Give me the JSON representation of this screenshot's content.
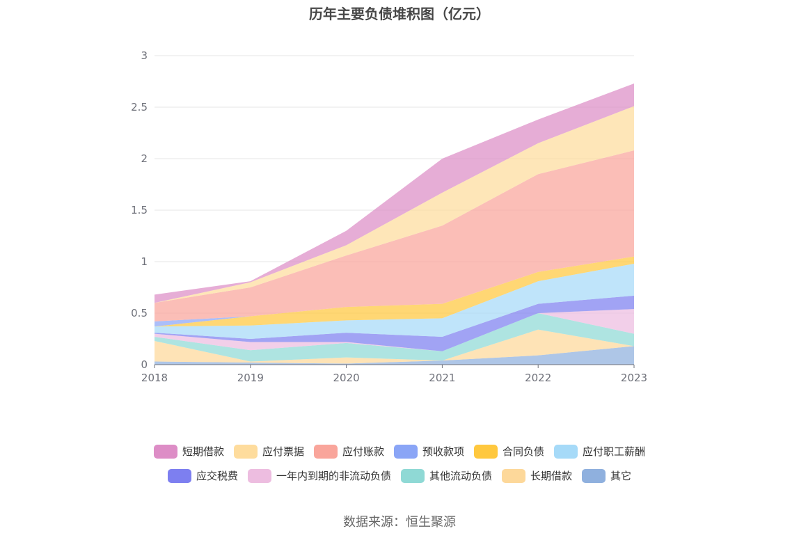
{
  "chart_data": {
    "type": "area",
    "stacked": true,
    "title": "历年主要负债堆积图（亿元）",
    "x": [
      "2018",
      "2019",
      "2020",
      "2021",
      "2022",
      "2023"
    ],
    "ylim": [
      0,
      3
    ],
    "yticks": [
      "0",
      "0.5",
      "1",
      "1.5",
      "2",
      "2.5",
      "3"
    ],
    "grid": true,
    "legend_position": "bottom",
    "series": [
      {
        "name": "其它",
        "color": "#8fb0de",
        "values": [
          0.03,
          0.02,
          0.01,
          0.04,
          0.09,
          0.18
        ]
      },
      {
        "name": "长期借款",
        "color": "#fdd89a",
        "values": [
          0.2,
          0.01,
          0.06,
          0.0,
          0.25,
          0.0
        ]
      },
      {
        "name": "其他流动负债",
        "color": "#8fd9d5",
        "values": [
          0.04,
          0.11,
          0.14,
          0.09,
          0.16,
          0.12
        ]
      },
      {
        "name": "一年内到期的非流动负债",
        "color": "#edbde0",
        "values": [
          0.03,
          0.08,
          0.01,
          0.0,
          0.0,
          0.24
        ]
      },
      {
        "name": "应交税费",
        "color": "#7d7ff0",
        "values": [
          0.01,
          0.03,
          0.09,
          0.14,
          0.09,
          0.13
        ]
      },
      {
        "name": "应付职工薪酬",
        "color": "#a6daf8",
        "values": [
          0.06,
          0.13,
          0.12,
          0.18,
          0.22,
          0.31
        ]
      },
      {
        "name": "合同负债",
        "color": "#ffc83e",
        "values": [
          0.0,
          0.09,
          0.13,
          0.14,
          0.09,
          0.07
        ]
      },
      {
        "name": "预收款项",
        "color": "#8aa5f6",
        "values": [
          0.05,
          0.0,
          0.0,
          0.0,
          0.0,
          0.0
        ]
      },
      {
        "name": "应付账款",
        "color": "#f9a59b",
        "values": [
          0.18,
          0.28,
          0.5,
          0.76,
          0.95,
          1.03
        ]
      },
      {
        "name": "应付票据",
        "color": "#fedc9d",
        "values": [
          0.0,
          0.05,
          0.1,
          0.32,
          0.3,
          0.43
        ]
      },
      {
        "name": "短期借款",
        "color": "#dd8dc6",
        "values": [
          0.08,
          0.01,
          0.14,
          0.33,
          0.23,
          0.22
        ]
      }
    ]
  },
  "legend": {
    "row1": [
      {
        "label": "短期借款",
        "color": "#dd8dc6"
      },
      {
        "label": "应付票据",
        "color": "#fedc9d"
      },
      {
        "label": "应付账款",
        "color": "#f9a59b"
      },
      {
        "label": "预收款项",
        "color": "#8aa5f6"
      },
      {
        "label": "合同负债",
        "color": "#ffc83e"
      },
      {
        "label": "应付职工薪酬",
        "color": "#a6daf8"
      }
    ],
    "row2": [
      {
        "label": "应交税费",
        "color": "#7d7ff0"
      },
      {
        "label": "一年内到期的非流动负债",
        "color": "#edbde0"
      },
      {
        "label": "其他流动负债",
        "color": "#8fd9d5"
      },
      {
        "label": "长期借款",
        "color": "#fdd89a"
      },
      {
        "label": "其它",
        "color": "#8fb0de"
      }
    ]
  },
  "source_text": "数据来源：恒生聚源"
}
